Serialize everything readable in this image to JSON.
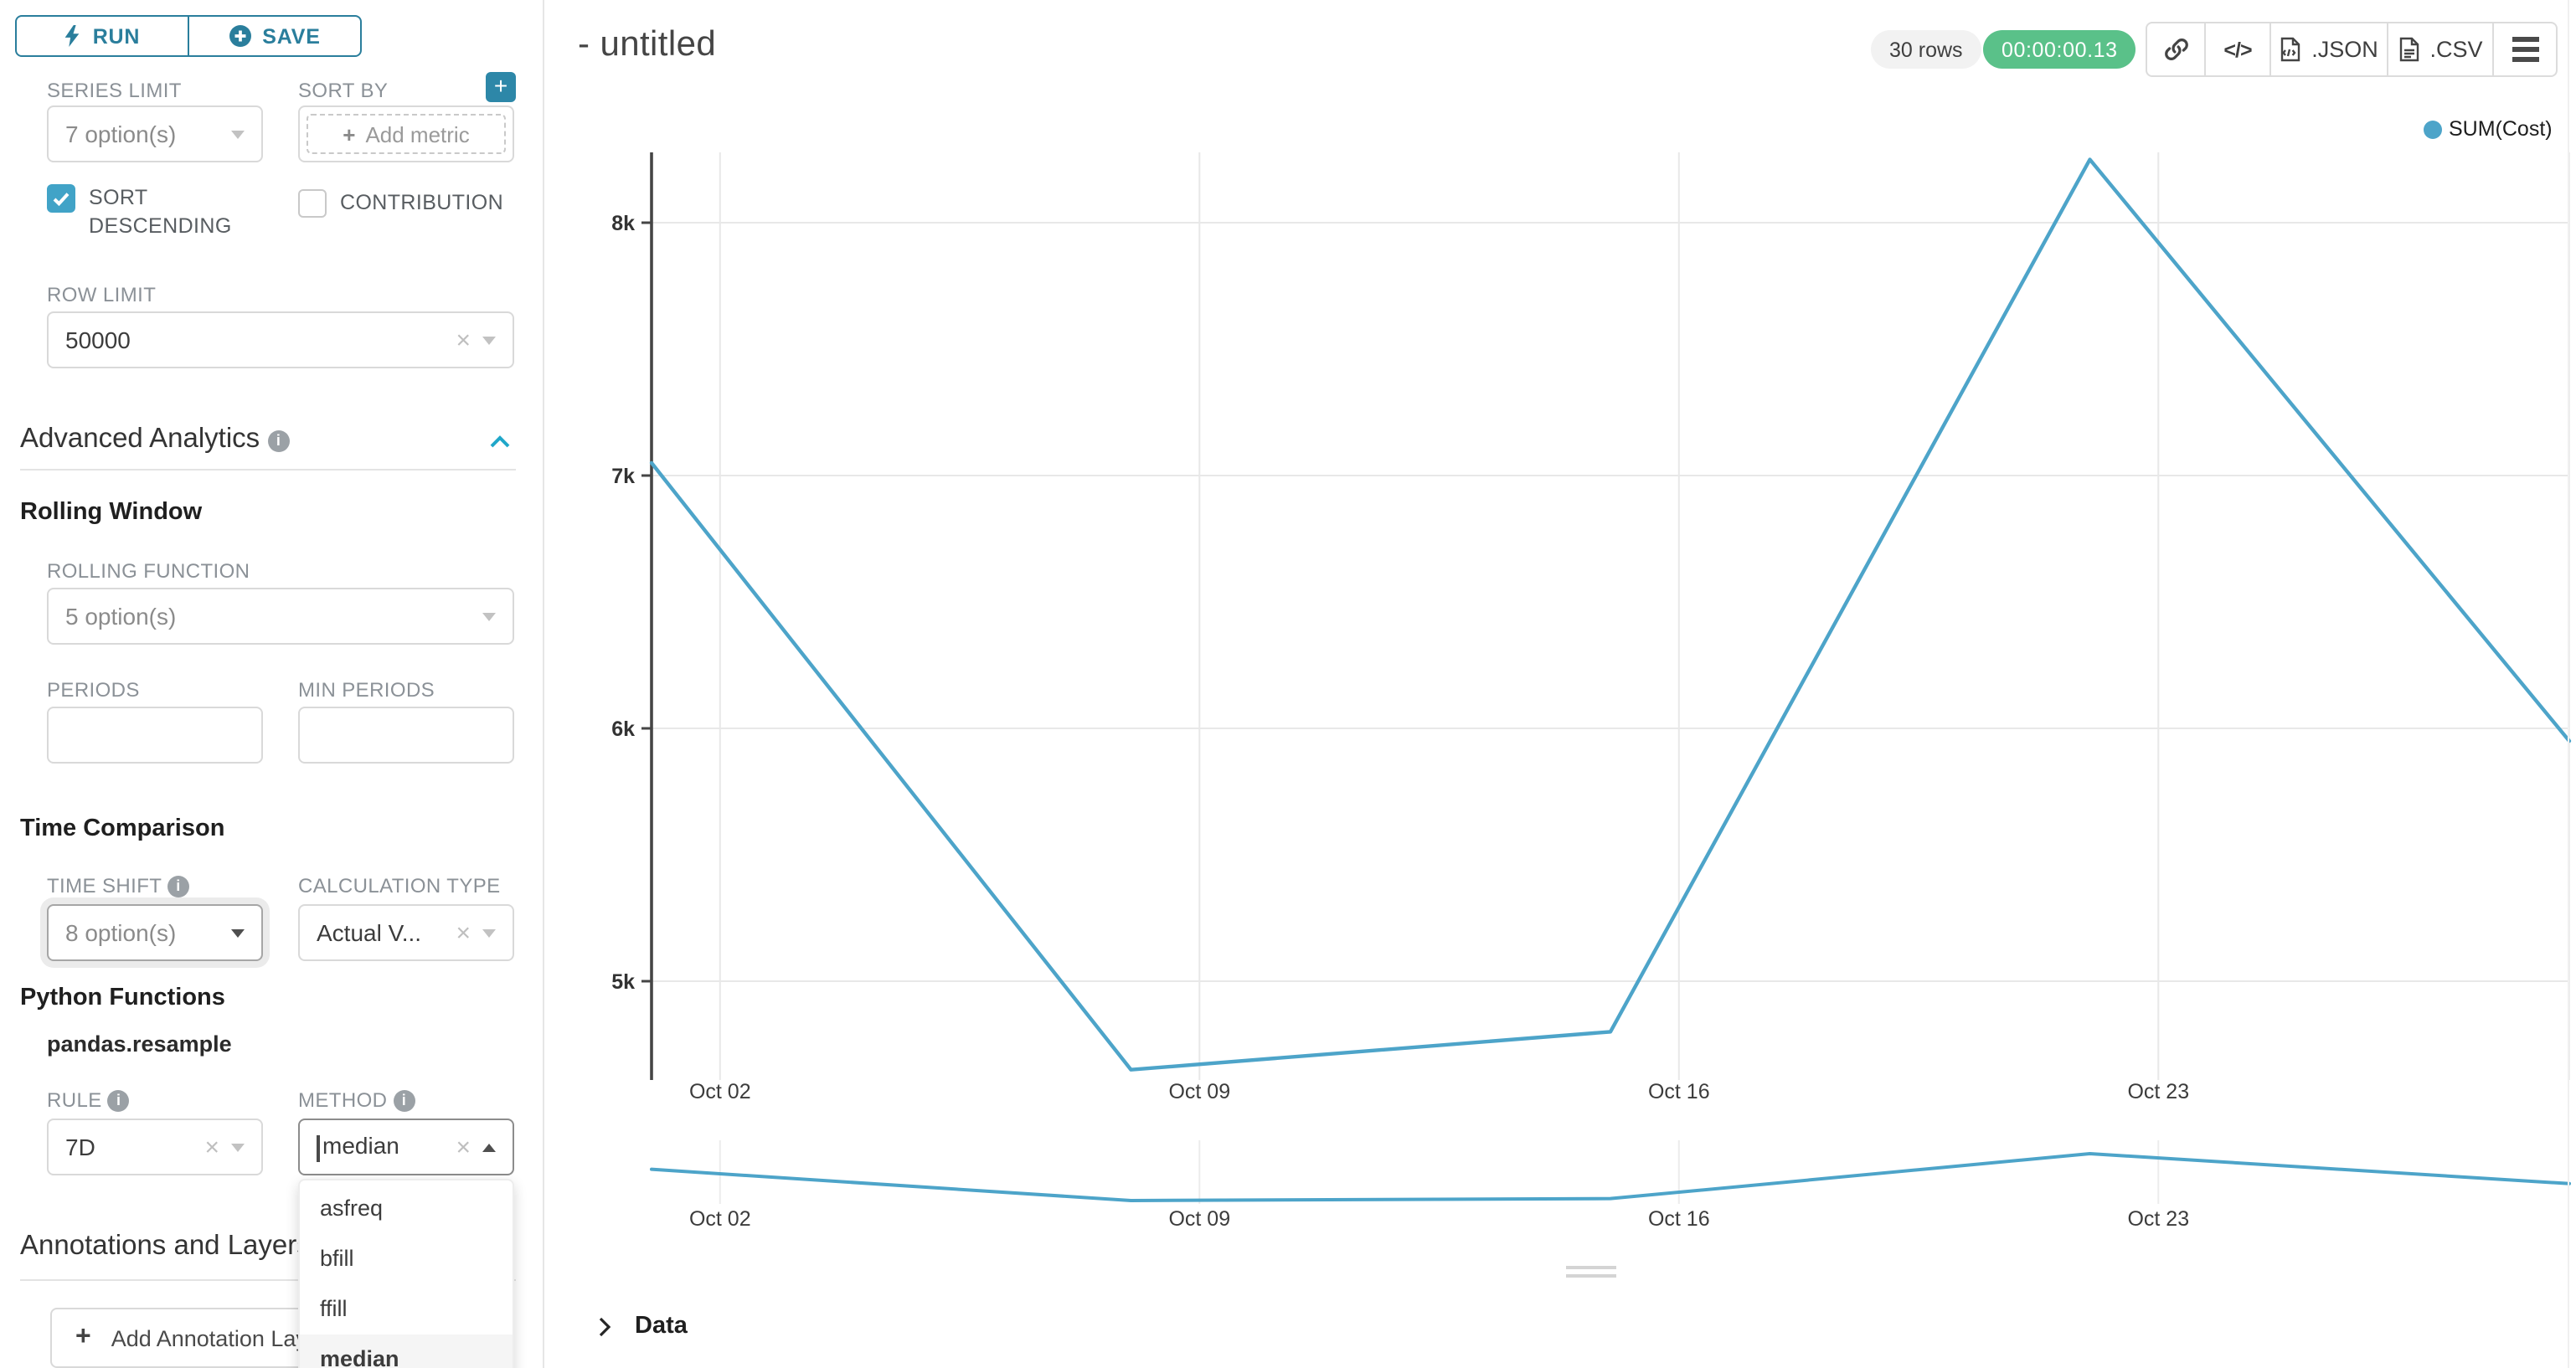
{
  "colors": {
    "primary": "#2a7e9c",
    "accent_teal": "#20a7c9",
    "checkbox": "#41a3c7",
    "line": "#4da4c9",
    "timer_bg": "#5ac189",
    "badge_bg": "#f2f2f2",
    "option_highlight": "#f5f5f5"
  },
  "icons": {
    "info_glyph": "i",
    "plus_glyph": "+",
    "clear_glyph": "×",
    "code_glyph": "</>"
  },
  "sidebar": {
    "run_label": "RUN",
    "save_label": "SAVE",
    "series_limit": {
      "label": "SERIES LIMIT",
      "value": "7 option(s)"
    },
    "sort_by": {
      "label": "SORT BY",
      "placeholder": "Add metric"
    },
    "sort_descending_label": "SORT DESCENDING",
    "contribution_label": "CONTRIBUTION",
    "row_limit": {
      "label": "ROW LIMIT",
      "value": "50000"
    },
    "advanced_analytics_title": "Advanced Analytics",
    "rolling_window_title": "Rolling Window",
    "rolling_function": {
      "label": "ROLLING FUNCTION",
      "value": "5 option(s)"
    },
    "periods_label": "PERIODS",
    "min_periods_label": "MIN PERIODS",
    "time_comparison_title": "Time Comparison",
    "time_shift": {
      "label": "TIME SHIFT",
      "value": "8 option(s)"
    },
    "calculation_type": {
      "label": "CALCULATION TYPE",
      "value": "Actual V..."
    },
    "python_functions_title": "Python Functions",
    "python_function_name": "pandas.resample",
    "rule": {
      "label": "RULE",
      "value": "7D"
    },
    "method": {
      "label": "METHOD",
      "value": "median",
      "options": [
        "asfreq",
        "bfill",
        "ffill",
        "median"
      ],
      "highlighted_option": "median"
    },
    "annotations_title": "Annotations and Layers",
    "add_annotation_label": "Add Annotation Layer"
  },
  "header": {
    "title": "- untitled",
    "rows_badge": "30 rows",
    "timer": "00:00:00.13",
    "export_json_label": ".JSON",
    "export_csv_label": ".CSV"
  },
  "chart_data": {
    "type": "line",
    "title": "",
    "legend": {
      "label": "SUM(Cost)",
      "position": "top-right"
    },
    "x": [
      "Oct 01",
      "Oct 08",
      "Oct 15",
      "Oct 22",
      "Oct 29"
    ],
    "day_offsets": [
      0,
      7,
      14,
      21,
      28
    ],
    "series": [
      {
        "name": "SUM(Cost)",
        "values": [
          7050,
          4650,
          4800,
          8250,
          5950
        ]
      }
    ],
    "x_tick_labels": [
      "Oct 02",
      "Oct 09",
      "Oct 16",
      "Oct 23"
    ],
    "x_tick_days": [
      1,
      8,
      15,
      22
    ],
    "y_tick_labels": [
      "8k",
      "7k",
      "6k",
      "5k"
    ],
    "y_tick_values": [
      8000,
      7000,
      6000,
      5000
    ],
    "ylim": [
      4600,
      8290
    ],
    "grid": true,
    "mini_chart": {
      "present": true,
      "x_tick_labels": [
        "Oct 02",
        "Oct 09",
        "Oct 16",
        "Oct 23"
      ]
    }
  },
  "data_panel": {
    "title": "Data"
  }
}
